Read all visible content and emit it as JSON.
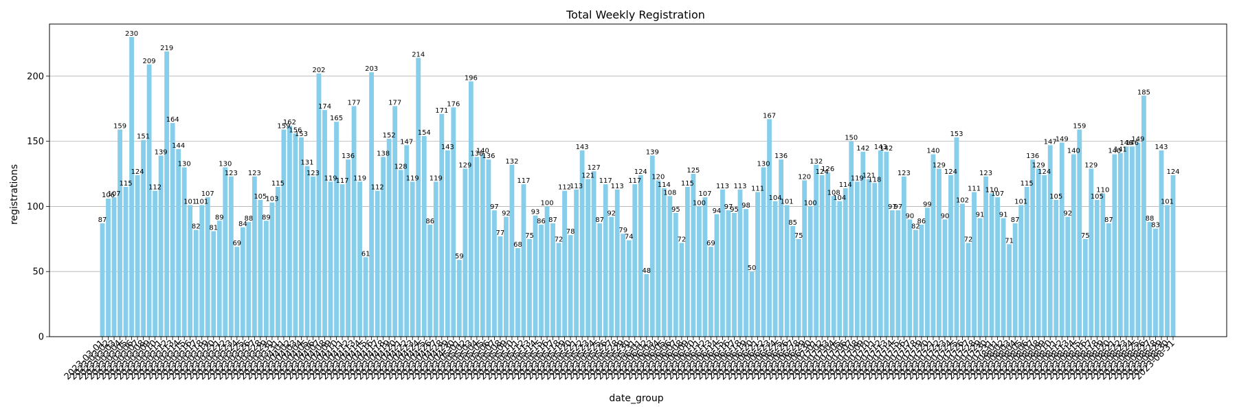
{
  "chart_data": {
    "type": "bar",
    "title": "Total Weekly Registration",
    "xlabel": "date_group",
    "ylabel": "registrations",
    "ylim": [
      0,
      240
    ],
    "yticks": [
      0,
      50,
      100,
      150,
      200
    ],
    "grid": "y",
    "bar_color": "#87ceeb",
    "categories": [
      "2023-03-01",
      "2023-03-02",
      "2023-03-03",
      "2023-03-04",
      "2023-03-05",
      "2023-03-06",
      "2023-03-07",
      "2023-03-08",
      "2023-03-09",
      "2023-03-10",
      "2023-03-11",
      "2023-03-12",
      "2023-03-13",
      "2023-03-14",
      "2023-03-15",
      "2023-03-16",
      "2023-03-17",
      "2023-03-18",
      "2023-03-19",
      "2023-03-20",
      "2023-03-21",
      "2023-03-22",
      "2023-03-23",
      "2023-03-24",
      "2023-03-25",
      "2023-03-26",
      "2023-03-27",
      "2023-03-28",
      "2023-03-29",
      "2023-03-30",
      "2023-03-31",
      "2023-04-01",
      "2023-04-02",
      "2023-04-03",
      "2023-04-04",
      "2023-04-05",
      "2023-04-06",
      "2023-04-07",
      "2023-04-08",
      "2023-04-09",
      "2023-04-10",
      "2023-04-11",
      "2023-04-12",
      "2023-04-13",
      "2023-04-14",
      "2023-04-15",
      "2023-04-16",
      "2023-04-17",
      "2023-04-18",
      "2023-04-19",
      "2023-04-20",
      "2023-04-21",
      "2023-04-22",
      "2023-04-23",
      "2023-04-24",
      "2023-04-25",
      "2023-04-26",
      "2023-04-27",
      "2023-04-28",
      "2023-04-29",
      "2023-04-30",
      "2023-05-01",
      "2023-05-02",
      "2023-05-03",
      "2023-05-04",
      "2023-05-05",
      "2023-05-06",
      "2023-05-07",
      "2023-05-08",
      "2023-05-09",
      "2023-05-10",
      "2023-05-11",
      "2023-05-12",
      "2023-05-13",
      "2023-05-14",
      "2023-05-15",
      "2023-05-16",
      "2023-05-17",
      "2023-05-18",
      "2023-05-19",
      "2023-05-20",
      "2023-05-21",
      "2023-05-22",
      "2023-05-23",
      "2023-05-24",
      "2023-05-25",
      "2023-05-26",
      "2023-05-27",
      "2023-05-28",
      "2023-05-29",
      "2023-05-30",
      "2023-05-31",
      "2023-06-01",
      "2023-06-02",
      "2023-06-03",
      "2023-06-04",
      "2023-06-05",
      "2023-06-06",
      "2023-06-07",
      "2023-06-08",
      "2023-06-09",
      "2023-06-10",
      "2023-06-11",
      "2023-06-12",
      "2023-06-13",
      "2023-06-14",
      "2023-06-15",
      "2023-06-16",
      "2023-06-17",
      "2023-06-18",
      "2023-06-19",
      "2023-06-20",
      "2023-06-21",
      "2023-06-22",
      "2023-06-23",
      "2023-06-24",
      "2023-06-25",
      "2023-06-26",
      "2023-06-27",
      "2023-06-28",
      "2023-06-29",
      "2023-06-30",
      "2023-07-01",
      "2023-07-02",
      "2023-07-03",
      "2023-07-04",
      "2023-07-05",
      "2023-07-06",
      "2023-07-07",
      "2023-07-08",
      "2023-07-09",
      "2023-07-10",
      "2023-07-11",
      "2023-07-12",
      "2023-07-13",
      "2023-07-14",
      "2023-07-15",
      "2023-07-16",
      "2023-07-17",
      "2023-07-18",
      "2023-07-19",
      "2023-07-20",
      "2023-07-21",
      "2023-07-22",
      "2023-07-23",
      "2023-07-24",
      "2023-07-25",
      "2023-07-26",
      "2023-07-27",
      "2023-07-28",
      "2023-07-29",
      "2023-07-30",
      "2023-07-31",
      "2023-08-01",
      "2023-08-02",
      "2023-08-03",
      "2023-08-04",
      "2023-08-05",
      "2023-08-06",
      "2023-08-07",
      "2023-08-08",
      "2023-08-09",
      "2023-08-10",
      "2023-08-11",
      "2023-08-12",
      "2023-08-13",
      "2023-08-14",
      "2023-08-15",
      "2023-08-16",
      "2023-08-17",
      "2023-08-18",
      "2023-08-19",
      "2023-08-20",
      "2023-08-21",
      "2023-08-22",
      "2023-08-23",
      "2023-08-24",
      "2023-08-25",
      "2023-08-26",
      "2023-08-27",
      "2023-08-28",
      "2023-08-29",
      "2023-08-30",
      "2023-08-31"
    ],
    "values": [
      87,
      106,
      107,
      159,
      115,
      230,
      124,
      151,
      209,
      112,
      139,
      219,
      164,
      144,
      130,
      101,
      82,
      101,
      107,
      81,
      89,
      130,
      123,
      69,
      84,
      88,
      123,
      105,
      89,
      103,
      115,
      159,
      162,
      156,
      153,
      131,
      123,
      202,
      174,
      119,
      165,
      117,
      136,
      177,
      119,
      61,
      203,
      112,
      138,
      152,
      177,
      128,
      147,
      119,
      214,
      154,
      86,
      119,
      171,
      143,
      176,
      59,
      129,
      196,
      138,
      140,
      136,
      97,
      77,
      92,
      132,
      68,
      117,
      75,
      93,
      86,
      100,
      87,
      72,
      112,
      78,
      113,
      143,
      121,
      127,
      87,
      117,
      92,
      113,
      79,
      74,
      117,
      124,
      48,
      139,
      120,
      114,
      108,
      95,
      72,
      115,
      125,
      100,
      107,
      69,
      94,
      113,
      97,
      95,
      113,
      98,
      50,
      111,
      130,
      167,
      104,
      136,
      101,
      85,
      75,
      120,
      100,
      132,
      124,
      126,
      108,
      104,
      114,
      150,
      119,
      142,
      121,
      118,
      143,
      142,
      97,
      97,
      123,
      90,
      82,
      86,
      99,
      140,
      129,
      90,
      124,
      153,
      102,
      72,
      111,
      91,
      123,
      110,
      107,
      91,
      71,
      87,
      101,
      115,
      136,
      129,
      124,
      147,
      105,
      149,
      92,
      140,
      159,
      75,
      129,
      105,
      110,
      87,
      140,
      141,
      146,
      146,
      149,
      185,
      88,
      83,
      143,
      101,
      124
    ]
  }
}
